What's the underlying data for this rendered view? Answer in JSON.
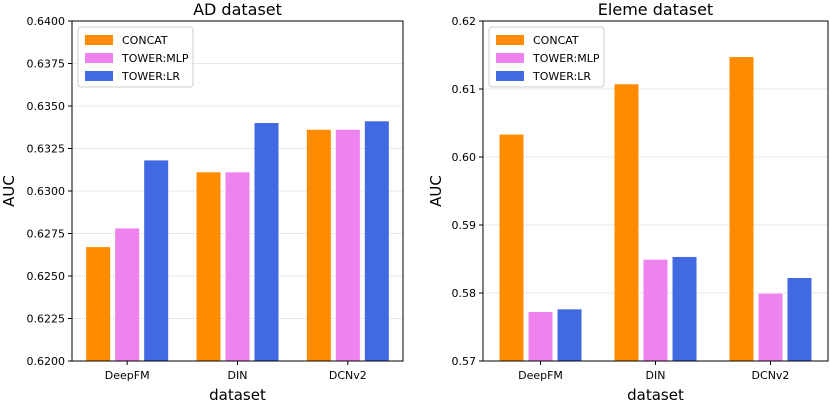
{
  "chart_data": [
    {
      "type": "bar",
      "title": "AD dataset",
      "xlabel": "dataset",
      "ylabel": "AUC",
      "categories": [
        "DeepFM",
        "DIN",
        "DCNv2"
      ],
      "ylim": [
        0.62,
        0.64
      ],
      "yticks": [
        0.62,
        0.6225,
        0.625,
        0.6275,
        0.63,
        0.6325,
        0.635,
        0.6375,
        0.64
      ],
      "ytick_labels": [
        "0.6200",
        "0.6225",
        "0.6250",
        "0.6275",
        "0.6300",
        "0.6325",
        "0.6350",
        "0.6375",
        "0.6400"
      ],
      "grid": true,
      "legend": "top-left",
      "series": [
        {
          "name": "CONCAT",
          "color": "#ff8c00",
          "values": [
            0.6267,
            0.6311,
            0.6336
          ]
        },
        {
          "name": "TOWER:MLP",
          "color": "#ee82ee",
          "values": [
            0.6278,
            0.6311,
            0.6336
          ]
        },
        {
          "name": "TOWER:LR",
          "color": "#4169e1",
          "values": [
            0.6318,
            0.634,
            0.6341
          ]
        }
      ]
    },
    {
      "type": "bar",
      "title": "Eleme dataset",
      "xlabel": "dataset",
      "ylabel": "AUC",
      "categories": [
        "DeepFM",
        "DIN",
        "DCNv2"
      ],
      "ylim": [
        0.57,
        0.62
      ],
      "yticks": [
        0.57,
        0.58,
        0.59,
        0.6,
        0.61,
        0.62
      ],
      "ytick_labels": [
        "0.57",
        "0.58",
        "0.59",
        "0.60",
        "0.61",
        "0.62"
      ],
      "grid": true,
      "legend": "top-left",
      "series": [
        {
          "name": "CONCAT",
          "color": "#ff8c00",
          "values": [
            0.6033,
            0.6107,
            0.6147
          ]
        },
        {
          "name": "TOWER:MLP",
          "color": "#ee82ee",
          "values": [
            0.5772,
            0.5849,
            0.5799
          ]
        },
        {
          "name": "TOWER:LR",
          "color": "#4169e1",
          "values": [
            0.5776,
            0.5853,
            0.5822
          ]
        }
      ]
    }
  ]
}
